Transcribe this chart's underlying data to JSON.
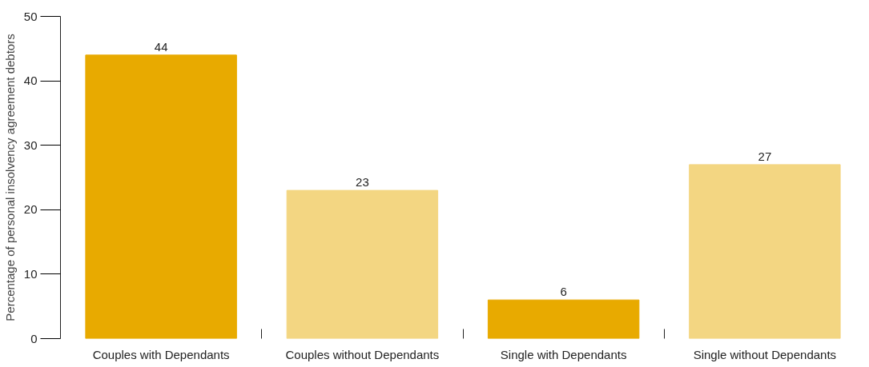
{
  "chart_data": {
    "type": "bar",
    "ylabel": "Percentage of personal insolvency agreement debtors",
    "categories": [
      "Couples with Dependants",
      "Couples without Dependants",
      "Single with Dependants",
      "Single without Dependants"
    ],
    "values": [
      44,
      23,
      6,
      27
    ],
    "colors": [
      "#e8aa00",
      "#f3d682",
      "#e8aa00",
      "#f3d682"
    ],
    "ylim": [
      0,
      50
    ],
    "yticks": [
      0,
      10,
      20,
      30,
      40,
      50
    ],
    "grid": false,
    "data_labels": true
  }
}
